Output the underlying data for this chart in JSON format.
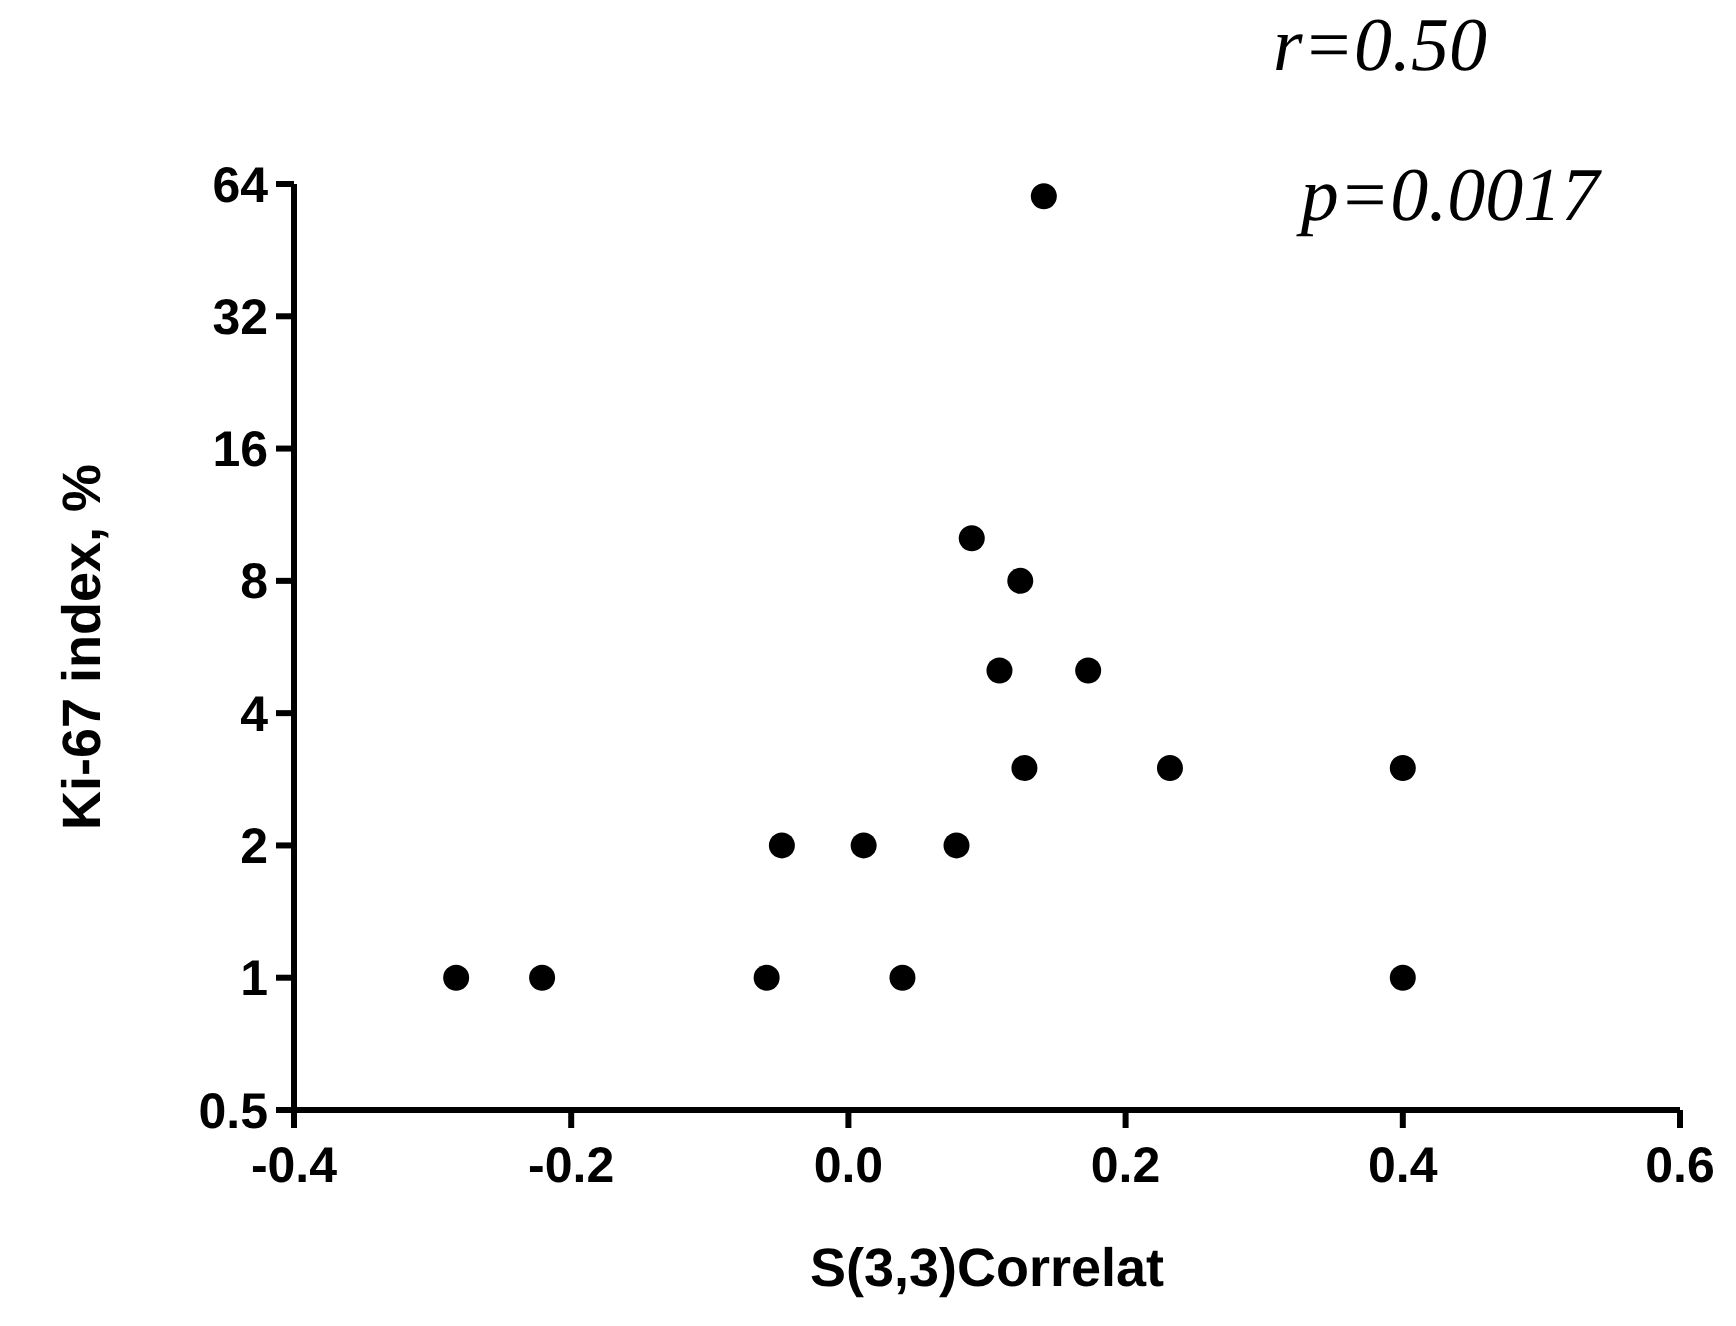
{
  "chart_data": {
    "type": "scatter",
    "xlabel": "S(3,3)Correlat",
    "ylabel": "Ki-67 index, %",
    "annotations": [
      "r=0.50",
      "p=0.0017"
    ],
    "x": [
      -0.283,
      -0.221,
      -0.059,
      0.039,
      0.4,
      -0.048,
      0.011,
      0.078,
      0.127,
      0.232,
      0.4,
      0.109,
      0.173,
      0.124,
      0.089,
      0.141
    ],
    "values": [
      1,
      1,
      1,
      1,
      1,
      2,
      2,
      2,
      3,
      3,
      3,
      5,
      5,
      8,
      10,
      60
    ],
    "color": "#000000",
    "marker": "circle",
    "log": "y",
    "grid": false,
    "xlim": [
      -0.4,
      0.6
    ],
    "xticks": [
      -0.4,
      -0.2,
      {
        "value": 0,
        "label": "0.0"
      },
      0.2,
      0.4,
      0.6
    ],
    "ylim": [
      0.5,
      64
    ],
    "yticks": [
      0.5,
      1,
      2,
      4,
      8,
      16,
      32,
      64
    ]
  }
}
